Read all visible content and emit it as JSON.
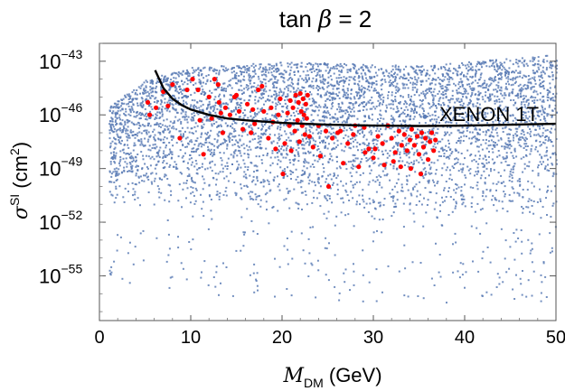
{
  "chart_data": {
    "type": "scatter",
    "title": {
      "prefix": "tan ",
      "symbol": "β",
      "suffix": " = 2"
    },
    "xlabel": {
      "main": "M",
      "sub": "DM",
      "unit": " (GeV)"
    },
    "ylabel": {
      "main": "σ",
      "sup": "SI",
      "unit_pre": " (cm",
      "unit_sup": "2",
      "unit_post": ")"
    },
    "xlim": [
      0,
      50
    ],
    "ylim_log10": [
      -57.5,
      -42
    ],
    "x_ticks": [
      "0",
      "10",
      "20",
      "30",
      "40",
      "50"
    ],
    "x_tick_values": [
      0,
      10,
      20,
      30,
      40,
      50
    ],
    "y_ticks": [
      {
        "value": -43,
        "base": "10",
        "exp": "−43"
      },
      {
        "value": -46,
        "base": "10",
        "exp": "−46"
      },
      {
        "value": -49,
        "base": "10",
        "exp": "−49"
      },
      {
        "value": -52,
        "base": "10",
        "exp": "−52"
      },
      {
        "value": -55,
        "base": "10",
        "exp": "−55"
      }
    ],
    "series": [
      {
        "name": "scan points",
        "color": "#5a7bb5",
        "description": "dense band of model points, roughly 1e-50 to 1e-43 cm^2 across 1–50 GeV",
        "band": {
          "x_range": [
            1,
            50
          ],
          "upper_log10_at_x": [
            [
              1,
              -45.5
            ],
            [
              5,
              -44
            ],
            [
              10,
              -43.3
            ],
            [
              20,
              -43
            ],
            [
              35,
              -43.2
            ],
            [
              50,
              -42.6
            ]
          ],
          "lower_log10_at_x": [
            [
              1,
              -51
            ],
            [
              10,
              -51.5
            ],
            [
              25,
              -52
            ],
            [
              50,
              -52
            ]
          ]
        }
      },
      {
        "name": "selected points",
        "color": "#ff0000",
        "points": [
          [
            5.3,
            -45.3
          ],
          [
            5.5,
            -46.0
          ],
          [
            6.2,
            -45.6
          ],
          [
            7.0,
            -44.7
          ],
          [
            7.5,
            -45.5
          ],
          [
            8.0,
            -44.3
          ],
          [
            8.8,
            -47.3
          ],
          [
            9.6,
            -44.6
          ],
          [
            10.2,
            -44.0
          ],
          [
            10.8,
            -44.6
          ],
          [
            11.0,
            -46.3
          ],
          [
            11.4,
            -48.2
          ],
          [
            12.0,
            -45.0
          ],
          [
            12.3,
            -46.2
          ],
          [
            12.6,
            -44.0
          ],
          [
            13.0,
            -44.3
          ],
          [
            13.1,
            -45.3
          ],
          [
            13.5,
            -47.0
          ],
          [
            13.8,
            -45.6
          ],
          [
            14.3,
            -46.0
          ],
          [
            14.8,
            -45.0
          ],
          [
            15.3,
            -45.8
          ],
          [
            15.7,
            -46.8
          ],
          [
            16.2,
            -45.4
          ],
          [
            16.6,
            -47.0
          ],
          [
            17.0,
            -46.5
          ],
          [
            17.4,
            -44.6
          ],
          [
            17.8,
            -44.4
          ],
          [
            18.0,
            -45.8
          ],
          [
            18.5,
            -47.3
          ],
          [
            19.0,
            -46.4
          ],
          [
            19.3,
            -47.9
          ],
          [
            19.6,
            -46.0
          ],
          [
            20.1,
            -49.3
          ],
          [
            20.3,
            -47.6
          ],
          [
            20.6,
            -45.9
          ],
          [
            20.9,
            -45.2
          ],
          [
            21.2,
            -45.6
          ],
          [
            21.5,
            -44.9
          ],
          [
            21.7,
            -46.3
          ],
          [
            21.8,
            -45.3
          ],
          [
            22.0,
            -44.8
          ],
          [
            22.1,
            -45.8
          ],
          [
            22.2,
            -46.6
          ],
          [
            22.3,
            -45.1
          ],
          [
            22.4,
            -46.0
          ],
          [
            22.5,
            -47.1
          ],
          [
            22.6,
            -45.4
          ],
          [
            22.7,
            -46.2
          ],
          [
            22.8,
            -44.9
          ],
          [
            21.9,
            -47.5
          ],
          [
            21.4,
            -46.9
          ],
          [
            21.0,
            -48.0
          ],
          [
            20.8,
            -46.6
          ],
          [
            23.0,
            -47.2
          ],
          [
            23.4,
            -47.8
          ],
          [
            24.2,
            -48.3
          ],
          [
            24.8,
            -46.9
          ],
          [
            25.1,
            -50.0
          ],
          [
            25.5,
            -47.3
          ],
          [
            26.1,
            -47.0
          ],
          [
            26.7,
            -48.7
          ],
          [
            27.2,
            -47.6
          ],
          [
            27.8,
            -47.1
          ],
          [
            28.4,
            -48.9
          ],
          [
            29.0,
            -46.7
          ],
          [
            29.5,
            -47.9
          ],
          [
            30.0,
            -48.4
          ],
          [
            30.5,
            -47.2
          ],
          [
            31.0,
            -47.6
          ],
          [
            31.6,
            -46.6
          ],
          [
            32.0,
            -47.3
          ],
          [
            32.4,
            -48.1
          ],
          [
            32.8,
            -46.9
          ],
          [
            33.1,
            -47.7
          ],
          [
            33.4,
            -47.1
          ],
          [
            33.7,
            -48.0
          ],
          [
            34.0,
            -47.4
          ],
          [
            34.2,
            -46.8
          ],
          [
            34.5,
            -47.7
          ],
          [
            34.8,
            -47.2
          ],
          [
            35.0,
            -48.2
          ],
          [
            35.3,
            -47.0
          ],
          [
            35.5,
            -47.8
          ],
          [
            35.7,
            -47.3
          ],
          [
            36.0,
            -48.5
          ],
          [
            36.2,
            -47.5
          ],
          [
            36.4,
            -47.0
          ],
          [
            36.6,
            -48.0
          ],
          [
            36.8,
            -47.4
          ],
          [
            33.0,
            -48.9
          ],
          [
            34.1,
            -49.0
          ],
          [
            35.2,
            -49.3
          ],
          [
            32.2,
            -48.6
          ],
          [
            31.2,
            -48.8
          ],
          [
            30.2,
            -47.9
          ],
          [
            29.1,
            -48.1
          ],
          [
            28.0,
            -46.6
          ],
          [
            26.4,
            -46.9
          ],
          [
            24.0,
            -46.6
          ],
          [
            16.8,
            -45.7
          ],
          [
            15.0,
            -44.9
          ],
          [
            13.3,
            -45.9
          ],
          [
            19.8,
            -45.1
          ],
          [
            18.8,
            -45.6
          ]
        ]
      },
      {
        "name": "XENON 1T",
        "color": "#000000",
        "label": "XENON 1T",
        "line": [
          [
            6.1,
            -43.5
          ],
          [
            7,
            -44.5
          ],
          [
            8,
            -45.1
          ],
          [
            9,
            -45.45
          ],
          [
            10,
            -45.7
          ],
          [
            12,
            -46.0
          ],
          [
            14,
            -46.2
          ],
          [
            16,
            -46.3
          ],
          [
            20,
            -46.45
          ],
          [
            25,
            -46.55
          ],
          [
            30,
            -46.6
          ],
          [
            35,
            -46.62
          ],
          [
            40,
            -46.6
          ],
          [
            45,
            -46.55
          ],
          [
            50,
            -46.5
          ]
        ]
      }
    ]
  }
}
